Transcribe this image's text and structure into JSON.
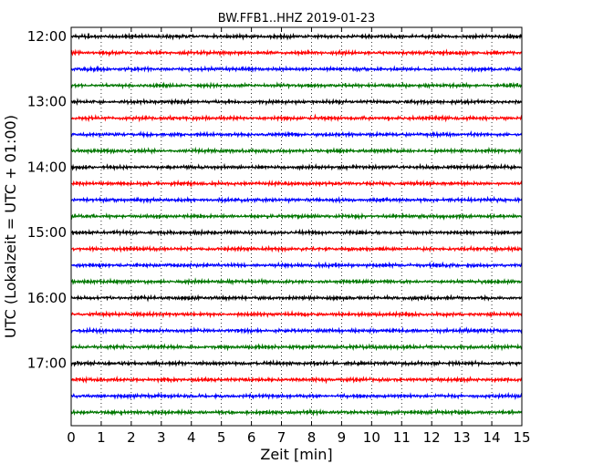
{
  "chart_data": {
    "type": "line",
    "title": "BW.FFB1..HHZ 2019-01-23",
    "xlabel": "Zeit  [min]",
    "ylabel": "UTC (Lokalzeit = UTC + 01:00)",
    "xlim": [
      0,
      15
    ],
    "x_ticks": [
      "0",
      "1",
      "2",
      "3",
      "4",
      "5",
      "6",
      "7",
      "8",
      "9",
      "10",
      "11",
      "12",
      "13",
      "14",
      "15"
    ],
    "y_ticks": [
      "12:00",
      "13:00",
      "14:00",
      "15:00",
      "16:00",
      "17:00"
    ],
    "grid": "vertical-dotted",
    "trace_colors": [
      "#000000",
      "#ff0000",
      "#0000ff",
      "#007700"
    ],
    "traces": [
      {
        "start": "12:00"
      },
      {
        "start": "12:15"
      },
      {
        "start": "12:30"
      },
      {
        "start": "12:45"
      },
      {
        "start": "13:00"
      },
      {
        "start": "13:15"
      },
      {
        "start": "13:30"
      },
      {
        "start": "13:45"
      },
      {
        "start": "14:00"
      },
      {
        "start": "14:15"
      },
      {
        "start": "14:30"
      },
      {
        "start": "14:45"
      },
      {
        "start": "15:00"
      },
      {
        "start": "15:15"
      },
      {
        "start": "15:30"
      },
      {
        "start": "15:45"
      },
      {
        "start": "16:00"
      },
      {
        "start": "16:15"
      },
      {
        "start": "16:30"
      },
      {
        "start": "16:45"
      },
      {
        "start": "17:00"
      },
      {
        "start": "17:15"
      },
      {
        "start": "17:30"
      },
      {
        "start": "17:45"
      }
    ]
  }
}
